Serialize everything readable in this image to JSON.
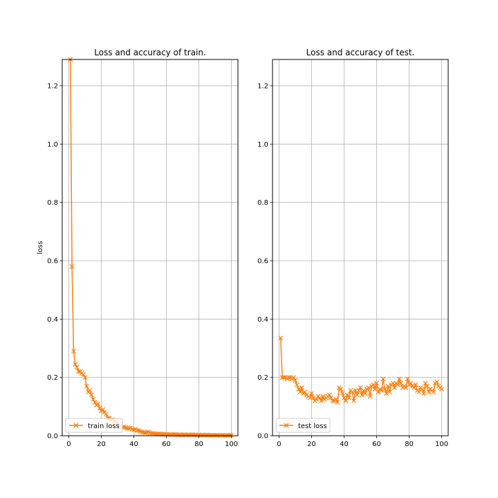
{
  "chart_data": [
    {
      "type": "line",
      "title": "Loss and accuracy of train.",
      "xlabel": "",
      "ylabel": "loss",
      "xlim": [
        -4,
        104
      ],
      "ylim": [
        0.0,
        1.29
      ],
      "xticks": [
        0,
        20,
        40,
        60,
        80,
        100
      ],
      "yticks": [
        0.0,
        0.2,
        0.4,
        0.6,
        0.8,
        1.0,
        1.2
      ],
      "ytick_labels": [
        "0.0",
        "0.2",
        "0.4",
        "0.6",
        "0.8",
        "1.0",
        "1.2"
      ],
      "grid": true,
      "legend_position": "lower-left",
      "series": [
        {
          "name": "train loss",
          "color": "#ff7f0e",
          "marker": "x",
          "x": [
            1,
            2,
            3,
            4,
            5,
            6,
            7,
            8,
            9,
            10,
            11,
            12,
            13,
            14,
            15,
            16,
            17,
            18,
            19,
            20,
            21,
            22,
            23,
            24,
            25,
            26,
            27,
            28,
            29,
            30,
            31,
            32,
            33,
            34,
            35,
            36,
            37,
            38,
            39,
            40,
            41,
            42,
            43,
            44,
            45,
            46,
            47,
            48,
            49,
            50,
            51,
            52,
            53,
            54,
            55,
            56,
            57,
            58,
            59,
            60,
            61,
            62,
            63,
            64,
            65,
            66,
            67,
            68,
            69,
            70,
            71,
            72,
            73,
            74,
            75,
            76,
            77,
            78,
            79,
            80,
            81,
            82,
            83,
            84,
            85,
            86,
            87,
            88,
            89,
            90,
            91,
            92,
            93,
            94,
            95,
            96,
            97,
            98,
            99,
            100
          ],
          "y": [
            1.29,
            0.58,
            0.29,
            0.245,
            0.235,
            0.22,
            0.22,
            0.215,
            0.21,
            0.2,
            0.17,
            0.15,
            0.155,
            0.14,
            0.125,
            0.115,
            0.105,
            0.11,
            0.095,
            0.085,
            0.09,
            0.08,
            0.075,
            0.06,
            0.06,
            0.055,
            0.055,
            0.05,
            0.05,
            0.045,
            0.04,
            0.035,
            0.03,
            0.03,
            0.028,
            0.025,
            0.025,
            0.027,
            0.022,
            0.02,
            0.022,
            0.018,
            0.018,
            0.015,
            0.013,
            0.012,
            0.01,
            0.011,
            0.013,
            0.009,
            0.008,
            0.008,
            0.007,
            0.006,
            0.006,
            0.007,
            0.005,
            0.005,
            0.006,
            0.005,
            0.004,
            0.005,
            0.004,
            0.004,
            0.005,
            0.004,
            0.003,
            0.004,
            0.003,
            0.003,
            0.004,
            0.003,
            0.003,
            0.003,
            0.003,
            0.004,
            0.003,
            0.003,
            0.002,
            0.003,
            0.002,
            0.003,
            0.002,
            0.002,
            0.003,
            0.002,
            0.002,
            0.002,
            0.002,
            0.002,
            0.002,
            0.002,
            0.001,
            0.002,
            0.002,
            0.001,
            0.002,
            0.001,
            0.002,
            0.002
          ]
        }
      ]
    },
    {
      "type": "line",
      "title": "Loss and accuracy of test.",
      "xlabel": "",
      "ylabel": "",
      "xlim": [
        -4,
        104
      ],
      "ylim": [
        0.0,
        1.29
      ],
      "xticks": [
        0,
        20,
        40,
        60,
        80,
        100
      ],
      "yticks": [
        0.0,
        0.2,
        0.4,
        0.6,
        0.8,
        1.0,
        1.2
      ],
      "ytick_labels": [
        "0.0",
        "0.2",
        "0.4",
        "0.6",
        "0.8",
        "1.0",
        "1.2"
      ],
      "grid": true,
      "legend_position": "lower-left",
      "series": [
        {
          "name": "test loss",
          "color": "#ff7f0e",
          "marker": "x",
          "x": [
            1,
            2,
            3,
            4,
            5,
            6,
            7,
            8,
            9,
            10,
            11,
            12,
            13,
            14,
            15,
            16,
            17,
            18,
            19,
            20,
            21,
            22,
            23,
            24,
            25,
            26,
            27,
            28,
            29,
            30,
            31,
            32,
            33,
            34,
            35,
            36,
            37,
            38,
            39,
            40,
            41,
            42,
            43,
            44,
            45,
            46,
            47,
            48,
            49,
            50,
            51,
            52,
            53,
            54,
            55,
            56,
            57,
            58,
            59,
            60,
            61,
            62,
            63,
            64,
            65,
            66,
            67,
            68,
            69,
            70,
            71,
            72,
            73,
            74,
            75,
            76,
            77,
            78,
            79,
            80,
            81,
            82,
            83,
            84,
            85,
            86,
            87,
            88,
            89,
            90,
            91,
            92,
            93,
            94,
            95,
            96,
            97,
            98,
            99,
            100
          ],
          "y": [
            0.335,
            0.2,
            0.2,
            0.2,
            0.195,
            0.2,
            0.2,
            0.195,
            0.2,
            0.19,
            0.175,
            0.16,
            0.15,
            0.165,
            0.145,
            0.15,
            0.14,
            0.135,
            0.13,
            0.145,
            0.13,
            0.12,
            0.125,
            0.135,
            0.13,
            0.12,
            0.135,
            0.125,
            0.13,
            0.135,
            0.14,
            0.13,
            0.12,
            0.12,
            0.125,
            0.115,
            0.165,
            0.16,
            0.145,
            0.13,
            0.12,
            0.14,
            0.13,
            0.155,
            0.15,
            0.12,
            0.155,
            0.14,
            0.155,
            0.165,
            0.14,
            0.155,
            0.145,
            0.16,
            0.165,
            0.135,
            0.17,
            0.175,
            0.16,
            0.18,
            0.15,
            0.16,
            0.155,
            0.195,
            0.16,
            0.145,
            0.17,
            0.15,
            0.175,
            0.18,
            0.165,
            0.18,
            0.175,
            0.195,
            0.18,
            0.165,
            0.17,
            0.165,
            0.195,
            0.175,
            0.18,
            0.17,
            0.165,
            0.175,
            0.155,
            0.15,
            0.165,
            0.16,
            0.145,
            0.18,
            0.17,
            0.15,
            0.16,
            0.155,
            0.15,
            0.18,
            0.185,
            0.17,
            0.165,
            0.16
          ]
        }
      ]
    }
  ]
}
